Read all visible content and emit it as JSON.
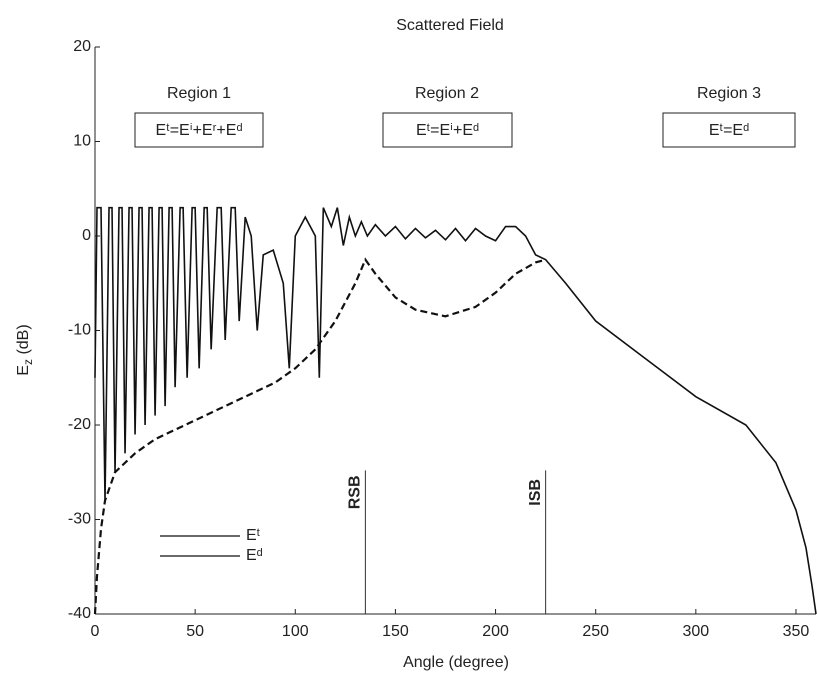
{
  "chart_data": {
    "type": "line",
    "title": "Scattered Field",
    "x_label": "Angle (degree)",
    "y_label": {
      "main": "E",
      "sub": "z",
      "unit": " (dB)"
    },
    "xlim": [
      0,
      360
    ],
    "ylim": [
      -40,
      20
    ],
    "xticks": [
      0,
      50,
      100,
      150,
      200,
      250,
      300,
      350
    ],
    "yticks": [
      -40,
      -30,
      -20,
      -10,
      0,
      10,
      20
    ],
    "regions": [
      {
        "label": "Region 1",
        "formula": "Eᵗ=Eⁱ+Eʳ+Eᵈ"
      },
      {
        "label": "Region 2",
        "formula": "Eᵗ=Eⁱ+Eᵈ"
      },
      {
        "label": "Region 3",
        "formula": "Eᵗ=Eᵈ"
      }
    ],
    "boundaries": [
      {
        "label": "RSB",
        "x": 135,
        "y_top": -24.8
      },
      {
        "label": "ISB",
        "x": 225,
        "y_top": -24.8
      }
    ],
    "series": [
      {
        "name": "Eᵗ",
        "color": "#111111",
        "dashed": false,
        "x": [
          0,
          1,
          3,
          5,
          7,
          8.5,
          10,
          12,
          13.5,
          15,
          17,
          18.5,
          20,
          22,
          23.5,
          25,
          27,
          28.5,
          30,
          32,
          33.5,
          35,
          37,
          38.5,
          40,
          42.5,
          44,
          46,
          48.5,
          50,
          52,
          54.5,
          56,
          58,
          61,
          63,
          65,
          68,
          70,
          72,
          75,
          78,
          81,
          84,
          89,
          94,
          97,
          100,
          105,
          110,
          112,
          114,
          118,
          121,
          124,
          127,
          130,
          133,
          136,
          140,
          145,
          150,
          155,
          160,
          165,
          170,
          175,
          180,
          185,
          190,
          195,
          200,
          205,
          210,
          215,
          220,
          225,
          235,
          250,
          275,
          300,
          325,
          340,
          350,
          355,
          358,
          360
        ],
        "values": [
          -15,
          3,
          3,
          -28,
          3,
          3,
          -25,
          3,
          3,
          -23,
          3,
          3,
          -21,
          3,
          3,
          -20,
          3,
          3,
          -19,
          3,
          3,
          -18,
          3,
          3,
          -16,
          3,
          3,
          -15,
          3,
          3,
          -14,
          3,
          3,
          -12,
          3,
          3,
          -11,
          3,
          3,
          -9,
          2,
          0,
          -10,
          -2,
          -1.5,
          -5,
          -14,
          0,
          2,
          0,
          -15,
          3,
          1,
          3,
          -1,
          2,
          0,
          1.5,
          0,
          1.2,
          0,
          1,
          -0.3,
          0.8,
          -0.2,
          0.6,
          -0.4,
          0.8,
          -0.5,
          0.8,
          0,
          -0.5,
          1,
          1,
          0,
          -2,
          -2.5,
          -5,
          -9,
          -13,
          -17,
          -20,
          -24,
          -29,
          -33,
          -37,
          -40
        ]
      },
      {
        "name": "Eᵈ",
        "color": "#111111",
        "dashed": true,
        "x": [
          0,
          1,
          3,
          5,
          10,
          20,
          30,
          40,
          50,
          60,
          70,
          80,
          90,
          100,
          110,
          120,
          130,
          135,
          140,
          150,
          160,
          175,
          190,
          200,
          210,
          220,
          225
        ],
        "values": [
          -40,
          -36,
          -31,
          -28,
          -25,
          -23,
          -21.5,
          -20.5,
          -19.5,
          -18.5,
          -17.5,
          -16.5,
          -15.5,
          -14,
          -12,
          -9,
          -5,
          -2.5,
          -4,
          -6.5,
          -7.8,
          -8.5,
          -7.5,
          -6,
          -4,
          -2.8,
          -2.5
        ]
      }
    ]
  }
}
